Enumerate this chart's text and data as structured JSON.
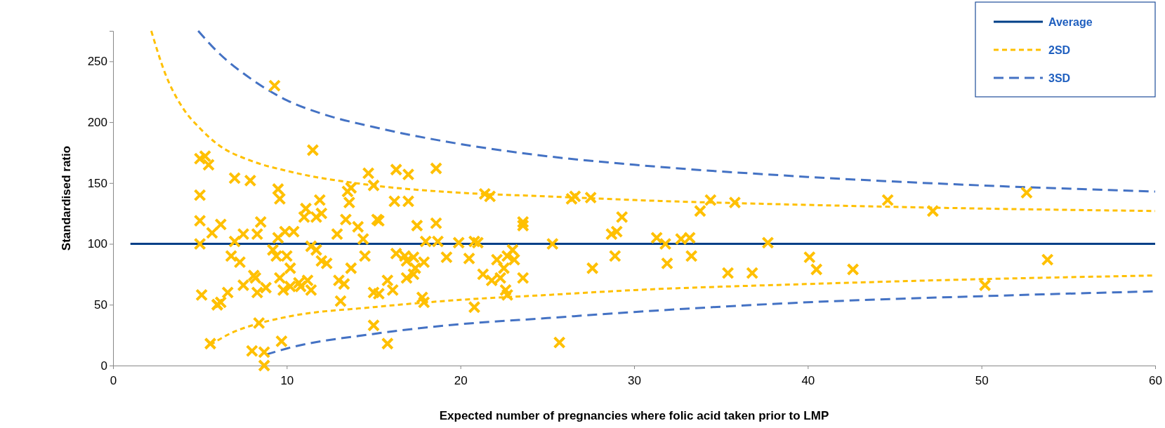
{
  "chart_data": {
    "type": "scatter",
    "xlabel": "Expected number of pregnancies where folic acid taken prior to LMP",
    "ylabel": "Standardised ratio",
    "xlim": [
      0,
      60
    ],
    "xticks": [
      0,
      10,
      20,
      30,
      40,
      50,
      60
    ],
    "ylim": [
      0,
      275
    ],
    "yticks": [
      0,
      50,
      100,
      150,
      200,
      250
    ],
    "grid": false,
    "legend": "top right",
    "series": [
      {
        "color": "#ffc000",
        "marker": "cross",
        "x": [
          5.0,
          5.3,
          5.5,
          5.0,
          5.0,
          5.0,
          5.1,
          5.6,
          5.7,
          6.0,
          6.2,
          6.2,
          6.0,
          7.0,
          7.0,
          7.3,
          6.8,
          6.6,
          7.5,
          7.5,
          7.9,
          8.0,
          8.1,
          8.2,
          8.3,
          8.3,
          8.5,
          8.4,
          8.8,
          8.7,
          8.7,
          9.3,
          9.5,
          9.6,
          9.2,
          9.4,
          9.5,
          9.6,
          9.7,
          9.8,
          9.9,
          10.0,
          10.2,
          10.4,
          10.2,
          10.7,
          10.8,
          11.1,
          11.0,
          11.2,
          11.4,
          11.5,
          11.4,
          11.7,
          11.7,
          11.9,
          12.0,
          12.0,
          12.3,
          12.9,
          13.0,
          13.1,
          13.3,
          13.4,
          13.5,
          13.6,
          13.7,
          13.7,
          14.1,
          14.4,
          14.5,
          14.7,
          15.0,
          15.2,
          15.3,
          15.0,
          15.3,
          15.0,
          15.8,
          15.8,
          16.1,
          16.2,
          16.3,
          16.3,
          16.8,
          16.9,
          17.0,
          17.0,
          16.9,
          17.3,
          17.4,
          17.5,
          17.3,
          17.9,
          17.8,
          17.9,
          18.0,
          18.6,
          18.6,
          18.7,
          19.2,
          19.9,
          20.5,
          20.8,
          21.0,
          20.8,
          21.4,
          21.7,
          21.3,
          21.8,
          22.1,
          22.3,
          22.5,
          22.6,
          22.7,
          22.7,
          23.0,
          23.1,
          23.6,
          23.6,
          23.6,
          25.3,
          25.7,
          26.4,
          26.6,
          27.5,
          27.6,
          28.7,
          28.9,
          29.0,
          29.3,
          31.3,
          31.8,
          31.9,
          32.7,
          33.2,
          33.3,
          33.8,
          34.4,
          35.4,
          35.8,
          36.8,
          37.7,
          40.1,
          40.5,
          42.6,
          44.6,
          47.2,
          50.2,
          52.6,
          53.8
        ],
        "values": [
          170,
          172,
          165,
          140,
          119,
          100,
          58,
          18,
          109,
          50,
          52,
          116,
          50,
          154,
          102,
          85,
          90,
          60,
          108,
          66,
          152,
          12,
          74,
          72,
          108,
          60,
          118,
          35,
          64,
          11,
          0,
          230,
          145,
          137,
          95,
          90,
          105,
          72,
          20,
          62,
          110,
          90,
          80,
          110,
          65,
          68,
          65,
          129,
          122,
          70,
          62,
          177,
          98,
          95,
          122,
          136,
          125,
          86,
          84,
          108,
          70,
          53,
          67,
          120,
          143,
          134,
          146,
          80,
          114,
          104,
          90,
          158,
          148,
          120,
          119,
          60,
          59,
          33,
          70,
          18,
          62,
          135,
          161,
          92,
          90,
          86,
          135,
          157,
          72,
          89,
          80,
          115,
          75,
          85,
          56,
          52,
          102,
          162,
          117,
          102,
          89,
          101,
          88,
          102,
          101,
          48,
          141,
          139,
          75,
          70,
          87,
          72,
          80,
          62,
          58,
          90,
          95,
          87,
          118,
          115,
          72,
          100,
          19,
          137,
          139,
          138,
          80,
          108,
          90,
          110,
          122,
          105,
          100,
          84,
          104,
          105,
          90,
          127,
          136,
          76,
          134,
          76,
          101,
          89,
          79,
          79,
          136,
          127,
          66,
          142,
          87
        ]
      },
      {
        "type": "line",
        "name": "Average",
        "color": "#003f87",
        "line_style": "solid",
        "x": [
          1,
          60
        ],
        "values": [
          100,
          100
        ]
      },
      {
        "type": "line",
        "name": "2SD",
        "color": "#ffc000",
        "line_style": "dashed",
        "x": [
          2.2,
          3,
          4,
          5,
          6,
          8,
          10,
          15,
          20,
          25,
          30,
          40,
          50,
          60
        ],
        "values": [
          275,
          240,
          212,
          195,
          182,
          168,
          160,
          148,
          142,
          139,
          136,
          132,
          129,
          127
        ]
      },
      {
        "type": "line",
        "color": "#ffc000",
        "line_style": "dashed",
        "x": [
          5.6,
          7,
          8,
          10,
          15,
          20,
          25,
          30,
          40,
          50,
          60
        ],
        "values": [
          17,
          28,
          33,
          40,
          48,
          54,
          58,
          62,
          67,
          71,
          74
        ]
      },
      {
        "type": "line",
        "name": "3SD",
        "color": "#4472c4",
        "line_style": "dashed",
        "x": [
          4.9,
          6,
          8,
          10,
          12,
          15,
          20,
          25,
          30,
          40,
          50,
          60
        ],
        "values": [
          275,
          258,
          235,
          218,
          207,
          196,
          182,
          172,
          165,
          155,
          148,
          143
        ]
      },
      {
        "type": "line",
        "color": "#4472c4",
        "line_style": "dashed",
        "x": [
          8.8,
          10,
          15,
          20,
          25,
          30,
          40,
          50,
          60
        ],
        "values": [
          9,
          14,
          26,
          34,
          39,
          44,
          52,
          57,
          61
        ]
      }
    ]
  }
}
